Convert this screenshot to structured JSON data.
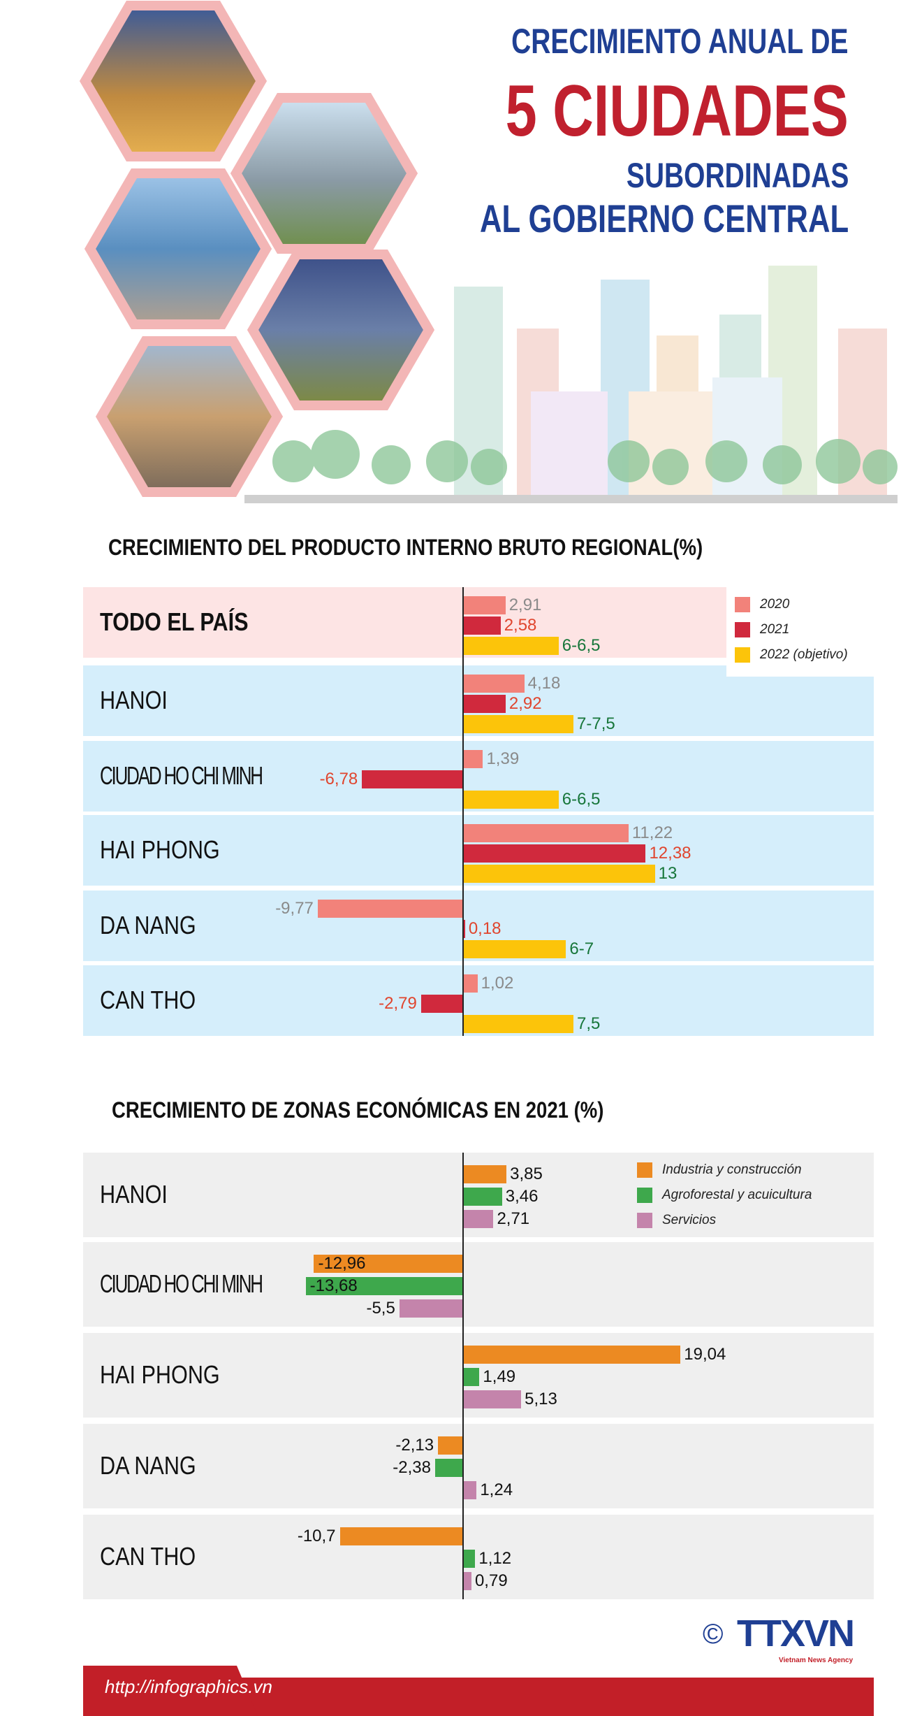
{
  "header": {
    "line1": "CRECIMIENTO ANUAL DE",
    "line2": "5 CIUDADES",
    "line3": "SUBORDINADAS",
    "line4": "AL GOBIERNO CENTRAL"
  },
  "footer": {
    "url": "http://infographics.vn",
    "copyright": "©",
    "logo": "TTXVN",
    "logo_sub": "Vietnam News Agency"
  },
  "chart_data": [
    {
      "type": "bar",
      "orientation": "horizontal",
      "title": "CRECIMIENTO DEL PRODUCTO INTERNO BRUTO REGIONAL(%)",
      "categories": [
        "TODO EL PAÍS",
        "HANOI",
        "CIUDAD HO CHI MINH",
        "HAI PHONG",
        "DA NANG",
        "CAN THO"
      ],
      "series": [
        {
          "name": "2020",
          "color": "#f2827a",
          "label_color": "#8a8a8a",
          "values": [
            2.91,
            4.18,
            1.39,
            11.22,
            -9.77,
            1.02
          ],
          "labels": [
            "2,91",
            "4,18",
            "1,39",
            "11,22",
            "-9,77",
            "1,02"
          ]
        },
        {
          "name": "2021",
          "color": "#d0293d",
          "label_color": "#e0452e",
          "values": [
            2.58,
            2.92,
            -6.78,
            12.38,
            0.18,
            -2.79
          ],
          "labels": [
            "2,58",
            "2,92",
            "-6,78",
            "12,38",
            "0,18",
            "-2,79"
          ]
        },
        {
          "name": "2022 (objetivo)",
          "color": "#fcc40a",
          "label_color": "#17763a",
          "values": [
            6.5,
            7.5,
            6.5,
            13,
            7,
            7.5
          ],
          "labels": [
            "6-6,5",
            "7-7,5",
            "6-6,5",
            "13",
            "6-7",
            "7,5"
          ]
        }
      ],
      "row_colors": [
        "#fde4e4",
        "#d5eefb",
        "#d5eefb",
        "#d5eefb",
        "#d5eefb",
        "#d5eefb"
      ],
      "legend": "top-right",
      "grid": false
    },
    {
      "type": "bar",
      "orientation": "horizontal",
      "title": "CRECIMIENTO DE ZONAS ECONÓMICAS EN 2021 (%)",
      "categories": [
        "HANOI",
        "CIUDAD HO CHI MINH",
        "HAI PHONG",
        "DA NANG",
        "CAN THO"
      ],
      "series": [
        {
          "name": "Industria y construcción",
          "color": "#ec8a22",
          "label_color": "#111111",
          "values": [
            3.85,
            -12.96,
            19.04,
            -2.13,
            -10.7
          ],
          "labels": [
            "3,85",
            "-12,96",
            "19,04",
            "-2,13",
            "-10,7"
          ]
        },
        {
          "name": "Agroforestal y acuicultura",
          "color": "#3ea84c",
          "label_color": "#111111",
          "values": [
            3.46,
            -13.68,
            1.49,
            -2.38,
            1.12
          ],
          "labels": [
            "3,46",
            "-13,68",
            "1,49",
            "-2,38",
            "1,12"
          ]
        },
        {
          "name": "Servicios",
          "color": "#c484ab",
          "label_color": "#111111",
          "values": [
            2.71,
            -5.5,
            5.13,
            1.24,
            0.79
          ],
          "labels": [
            "2,71",
            "-5,5",
            "5,13",
            "1,24",
            "0,79"
          ]
        }
      ],
      "row_colors": [
        "#efefef",
        "#efefef",
        "#efefef",
        "#efefef",
        "#efefef"
      ],
      "legend": "top-right",
      "grid": false
    }
  ]
}
